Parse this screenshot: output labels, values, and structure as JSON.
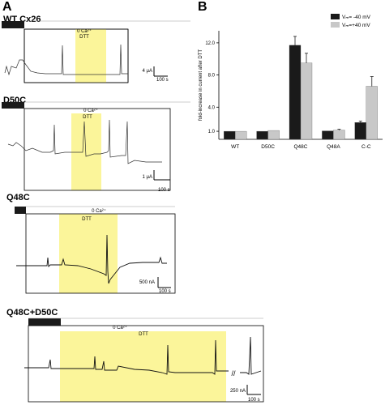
{
  "panel_labels": [
    "A",
    "B"
  ],
  "traces": [
    {
      "title": "WT Cx26",
      "condition": "0 Ca²⁺",
      "treatment": "DTT",
      "scale_y": "4 μA",
      "scale_x": "100 s"
    },
    {
      "title": "D50C",
      "condition": "0 Ca²⁺",
      "treatment": "DTT",
      "scale_y": "1 μA",
      "scale_x": "100 s"
    },
    {
      "title": "Q48C",
      "condition": "0 Ca²⁺",
      "treatment": "DTT",
      "scale_y": "500 nA",
      "scale_x": "100 s"
    },
    {
      "title": "Q48C+D50C",
      "condition": "0 Ca²⁺",
      "treatment": "DTT",
      "scale_y": "250 nA",
      "scale_x": "100 s"
    }
  ],
  "colors": {
    "dtt": "#fbf59a",
    "black_bar": "#1a1a1a",
    "series_dark": "#1a1a1a",
    "series_light": "#c8c8c8"
  },
  "chart_data": {
    "type": "bar",
    "title": "",
    "xlabel": "",
    "ylabel": "fold-increase in current after DTT",
    "categories": [
      "WT",
      "D50C",
      "Q48C",
      "Q48A",
      "C-C"
    ],
    "series": [
      {
        "name": "Vₘ= -40 mV",
        "values": [
          1.0,
          1.0,
          11.7,
          1.05,
          2.1
        ],
        "errors": [
          0.05,
          0.05,
          1.1,
          0.05,
          0.15
        ]
      },
      {
        "name": "Vₘ=+40 mV",
        "values": [
          1.0,
          1.1,
          9.5,
          1.15,
          6.6
        ],
        "errors": [
          0.05,
          0.05,
          1.2,
          0.1,
          1.2
        ]
      }
    ],
    "ylim": [
      0,
      13.5
    ],
    "yticks": [
      "1.0",
      "4.0",
      "8.0",
      "12.0"
    ],
    "legend_position": "top-right"
  }
}
